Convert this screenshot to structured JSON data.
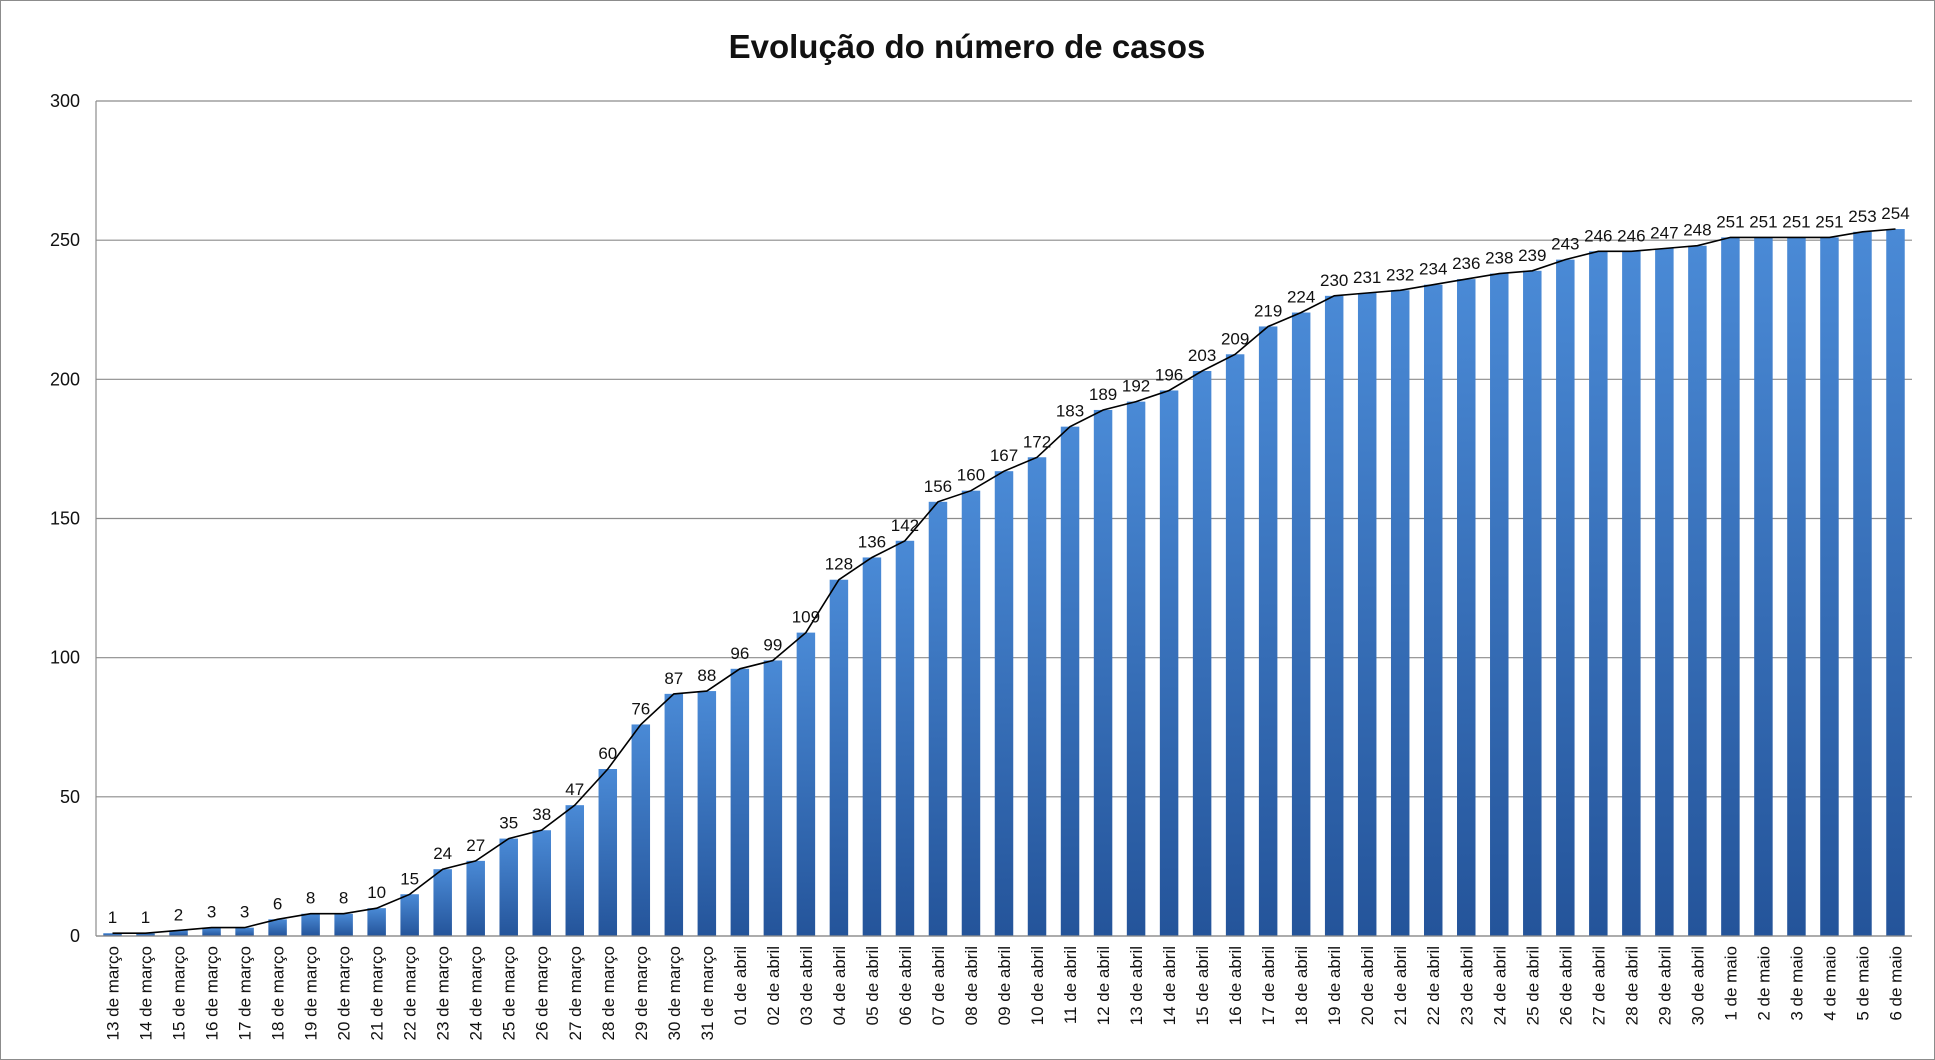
{
  "chart_data": {
    "type": "bar",
    "title": "Evolução do número de casos",
    "xlabel": "",
    "ylabel": "",
    "ylim": [
      0,
      300
    ],
    "yticks": [
      0,
      50,
      100,
      150,
      200,
      250,
      300
    ],
    "grid": true,
    "legend": "none",
    "colors": {
      "bar_top": "#4a8ad6",
      "bar_bottom": "#24549a",
      "line": "#000000",
      "grid": "#8c8c8c"
    },
    "categories": [
      "13 de março",
      "14 de março",
      "15 de março",
      "16 de março",
      "17 de março",
      "18 de março",
      "19 de março",
      "20 de março",
      "21 de março",
      "22 de março",
      "23 de março",
      "24 de março",
      "25 de março",
      "26 de março",
      "27 de março",
      "28 de março",
      "29 de março",
      "30 de março",
      "31 de março",
      "01 de abril",
      "02 de abril",
      "03 de abril",
      "04 de abril",
      "05 de abril",
      "06 de abril",
      "07 de abril",
      "08 de abril",
      "09 de abril",
      "10 de abril",
      "11 de abril",
      "12 de abril",
      "13 de abril",
      "14 de abril",
      "15 de abril",
      "16 de abril",
      "17 de abril",
      "18 de abril",
      "19 de abril",
      "20 de abril",
      "21 de abril",
      "22 de abril",
      "23 de abril",
      "24 de abril",
      "25 de abril",
      "26 de abril",
      "27 de abril",
      "28 de abril",
      "29 de abril",
      "30 de abril",
      "1 de maio",
      "2 de maio",
      "3 de maio",
      "4 de maio",
      "5 de maio",
      "6 de maio"
    ],
    "series": [
      {
        "type": "bar",
        "values": [
          1,
          1,
          2,
          3,
          3,
          6,
          8,
          8,
          10,
          15,
          24,
          27,
          35,
          38,
          47,
          60,
          76,
          87,
          88,
          96,
          99,
          109,
          128,
          136,
          142,
          156,
          160,
          167,
          172,
          183,
          189,
          192,
          196,
          203,
          209,
          219,
          224,
          230,
          231,
          232,
          234,
          236,
          238,
          239,
          243,
          246,
          246,
          247,
          248,
          251,
          251,
          251,
          251,
          253,
          254
        ]
      },
      {
        "type": "line",
        "values": [
          1,
          1,
          2,
          3,
          3,
          6,
          8,
          8,
          10,
          15,
          24,
          27,
          35,
          38,
          47,
          60,
          76,
          87,
          88,
          96,
          99,
          109,
          128,
          136,
          142,
          156,
          160,
          167,
          172,
          183,
          189,
          192,
          196,
          203,
          209,
          219,
          224,
          230,
          231,
          232,
          234,
          236,
          238,
          239,
          243,
          246,
          246,
          247,
          248,
          251,
          251,
          251,
          251,
          253,
          254
        ]
      }
    ],
    "data_labels": [
      "1",
      "1",
      "2",
      "3",
      "3",
      "6",
      "8",
      "8",
      "10",
      "15",
      "24",
      "27",
      "35",
      "38",
      "47",
      "60",
      "76",
      "87",
      "88",
      "96",
      "99",
      "109",
      "128",
      "136",
      "142",
      "156",
      "160",
      "167",
      "172",
      "183",
      "189",
      "192",
      "196",
      "203",
      "209",
      "219",
      "224",
      "230",
      "231",
      "232",
      "234",
      "236",
      "238",
      "239",
      "243",
      "246",
      "246",
      "247",
      "248",
      "251",
      "251",
      "251",
      "251",
      "253",
      "254"
    ]
  }
}
